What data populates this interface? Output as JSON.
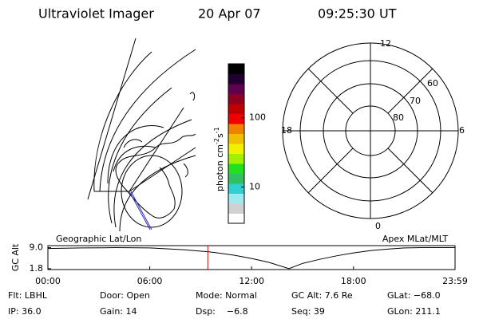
{
  "header": {
    "instrument": "Ultraviolet Imager",
    "date": "20 Apr 07",
    "time": "09:25:30 UT"
  },
  "map": {
    "label": "Geographic Lat/Lon"
  },
  "colorbar": {
    "type": "colorbar",
    "label": "photon cm",
    "exp1": "-2",
    "unit2": "s",
    "exp2": "-1",
    "scale": "log",
    "lim": [
      3,
      600
    ],
    "ticks": [
      10,
      100
    ],
    "colors": [
      "#ffffff",
      "#d0d0d0",
      "#a0e8f0",
      "#30d0d0",
      "#30c060",
      "#20e020",
      "#a0f000",
      "#f0f000",
      "#f0c000",
      "#f08000",
      "#f00000",
      "#c00000",
      "#900020",
      "#600050",
      "#200030",
      "#000000"
    ]
  },
  "polar": {
    "label": "Apex MLat/MLT",
    "mlt": [
      12,
      18,
      6,
      0
    ],
    "mlat": [
      80,
      70,
      60
    ]
  },
  "chart_data": {
    "type": "line",
    "ylabel": "GC Alt",
    "color": "#000000",
    "x": [
      0,
      2,
      4,
      6,
      8,
      9.42,
      10,
      11,
      12,
      13,
      14.2,
      15,
      16,
      17,
      18,
      19,
      20,
      21,
      22,
      23.983
    ],
    "values": [
      8.7,
      8.9,
      9.0,
      8.9,
      8.3,
      7.6,
      7.2,
      6.4,
      5.3,
      4.0,
      1.8,
      3.6,
      5.0,
      6.2,
      7.2,
      8.0,
      8.5,
      8.9,
      9.0,
      9.0
    ],
    "xlim": [
      0,
      23.983
    ],
    "xticks": [
      {
        "value": 0,
        "label": "00:00"
      },
      {
        "value": 6,
        "label": "06:00"
      },
      {
        "value": 12,
        "label": "12:00"
      },
      {
        "value": 18,
        "label": "18:00"
      },
      {
        "value": 23.983,
        "label": "23:59"
      }
    ],
    "ylim": [
      1.5,
      9.7
    ],
    "yticks": [
      1.8,
      {
        "value": 9,
        "label": "9.0"
      }
    ],
    "marker_x": 9.42,
    "marker_color": "#e00000"
  },
  "status": [
    [
      "Flt: LBHL",
      "Door: Open",
      "Mode: Normal",
      "GC Alt: 7.6 Re",
      "GLat: −68.0"
    ],
    [
      "IP: 36.0",
      "Gain: 14",
      "Dsp:    −6.8",
      "Seq: 39",
      "GLon: 211.1"
    ]
  ]
}
